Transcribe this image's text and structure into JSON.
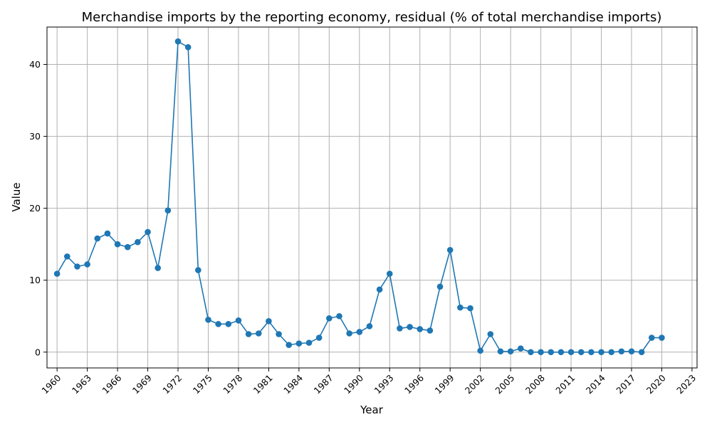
{
  "chart_data": {
    "type": "line",
    "title": "Merchandise imports by the reporting economy, residual (% of total merchandise imports)",
    "xlabel": "Year",
    "ylabel": "Value",
    "xlim": [
      1959,
      2023.5
    ],
    "ylim": [
      -2.2,
      45.2
    ],
    "x_ticks": [
      1960,
      1963,
      1966,
      1969,
      1972,
      1975,
      1978,
      1981,
      1984,
      1987,
      1990,
      1993,
      1996,
      1999,
      2002,
      2005,
      2008,
      2011,
      2014,
      2017,
      2020,
      2023
    ],
    "y_ticks": [
      0,
      10,
      20,
      30,
      40
    ],
    "grid": true,
    "line_color": "#1f77b4",
    "x": [
      1960,
      1961,
      1962,
      1963,
      1964,
      1965,
      1966,
      1967,
      1968,
      1969,
      1970,
      1971,
      1972,
      1973,
      1974,
      1975,
      1976,
      1977,
      1978,
      1979,
      1980,
      1981,
      1982,
      1983,
      1984,
      1985,
      1986,
      1987,
      1988,
      1989,
      1990,
      1991,
      1992,
      1993,
      1994,
      1995,
      1996,
      1997,
      1998,
      1999,
      2000,
      2001,
      2002,
      2003,
      2004,
      2005,
      2006,
      2007,
      2008,
      2009,
      2010,
      2011,
      2012,
      2013,
      2014,
      2015,
      2016,
      2017,
      2018,
      2019,
      2020
    ],
    "y": [
      10.9,
      13.3,
      11.9,
      12.2,
      15.8,
      16.5,
      15.0,
      14.6,
      15.3,
      16.7,
      11.7,
      19.7,
      43.2,
      42.4,
      11.4,
      4.5,
      3.9,
      3.9,
      4.4,
      2.5,
      2.6,
      4.3,
      2.5,
      1.0,
      1.2,
      1.3,
      2.0,
      4.7,
      5.0,
      2.6,
      2.8,
      3.6,
      8.7,
      10.9,
      3.3,
      3.5,
      3.2,
      3.0,
      9.1,
      14.2,
      6.2,
      6.1,
      0.2,
      2.5,
      0.1,
      0.1,
      0.5,
      0.0,
      0.0,
      0.0,
      0.0,
      0.0,
      0.0,
      0.0,
      0.0,
      0.0,
      0.1,
      0.1,
      0.0,
      2.0,
      2.0
    ]
  }
}
